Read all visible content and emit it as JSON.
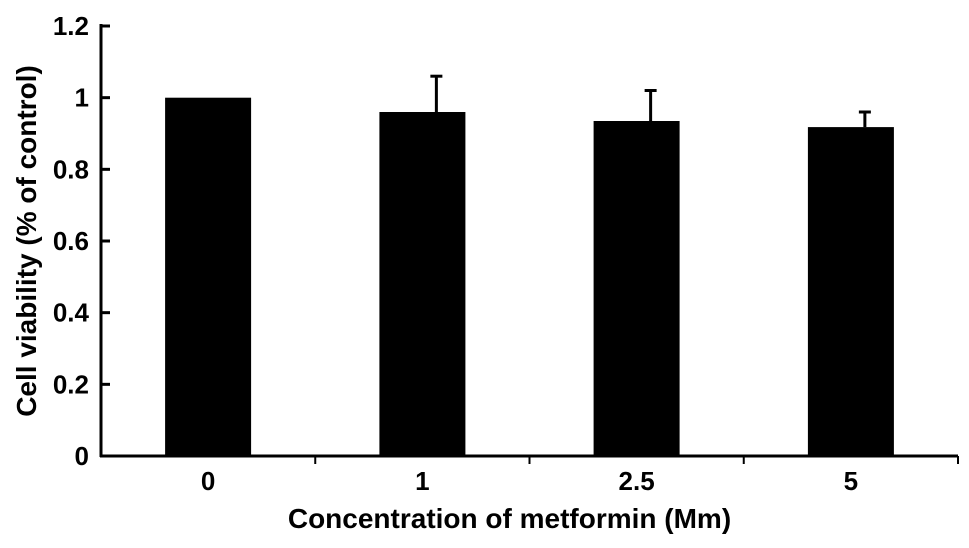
{
  "chart_data": {
    "type": "bar",
    "title": "",
    "xlabel": "Concentration of metformin (Mm)",
    "ylabel": "Cell viability (% of control)",
    "categories": [
      "0",
      "1",
      "2.5",
      "5"
    ],
    "series": [
      {
        "values": [
          1.0,
          0.96,
          0.935,
          0.918
        ],
        "errors": [
          0.0,
          0.1,
          0.085,
          0.042
        ]
      }
    ],
    "ylim": [
      0,
      1.2
    ],
    "yticks": [
      0,
      0.2,
      0.4,
      0.6,
      0.8,
      1,
      1.2
    ],
    "ytick_labels": [
      "0",
      "0.2",
      "0.4",
      "0.6",
      "0.8",
      "1",
      "1.2"
    ],
    "grid": false,
    "legend": "none",
    "colors": {
      "bar": "#000000",
      "axis": "#000000"
    }
  }
}
